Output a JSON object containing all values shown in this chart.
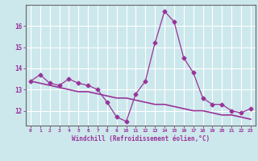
{
  "xlabel": "Windchill (Refroidissement éolien,°C)",
  "x_values": [
    0,
    1,
    2,
    3,
    4,
    5,
    6,
    7,
    8,
    9,
    10,
    11,
    12,
    13,
    14,
    15,
    16,
    17,
    18,
    19,
    20,
    21,
    22,
    23
  ],
  "y_main": [
    13.4,
    13.7,
    13.3,
    13.2,
    13.5,
    13.3,
    13.2,
    13.0,
    12.4,
    11.7,
    11.5,
    12.8,
    13.4,
    15.2,
    16.7,
    16.2,
    14.5,
    13.8,
    12.6,
    12.3,
    12.3,
    12.0,
    11.9,
    12.1
  ],
  "y_trend": [
    13.4,
    13.3,
    13.2,
    13.1,
    13.0,
    12.9,
    12.9,
    12.8,
    12.7,
    12.6,
    12.6,
    12.5,
    12.4,
    12.3,
    12.3,
    12.2,
    12.1,
    12.0,
    12.0,
    11.9,
    11.8,
    11.8,
    11.7,
    11.6
  ],
  "ylim": [
    11.3,
    17.0
  ],
  "yticks": [
    12,
    13,
    14,
    15,
    16
  ],
  "line_color": "#993399",
  "bg_color": "#cce8ec",
  "grid_color": "#ffffff",
  "tick_color": "#993399",
  "label_color": "#993399",
  "figsize": [
    3.2,
    2.0
  ],
  "dpi": 100
}
